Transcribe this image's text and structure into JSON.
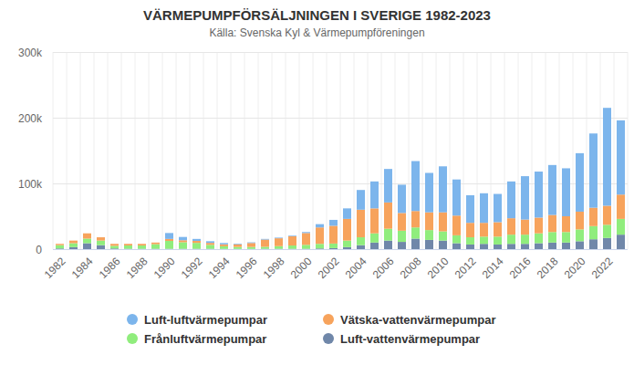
{
  "chart_data": {
    "type": "bar",
    "title": "VÄRMEPUMPFÖRSÄLJNINGEN I SVERIGE 1982-2023",
    "subtitle": "Källa: Svenska Kyl & Värmepumpföreningen",
    "stacked": true,
    "grid": true,
    "legend": "bottom",
    "categories": [
      "1982",
      null,
      "1984",
      null,
      "1986",
      null,
      "1988",
      null,
      "1990",
      null,
      "1992",
      null,
      "1994",
      null,
      "1996",
      null,
      "1998",
      null,
      "2000",
      null,
      "2002",
      null,
      "2004",
      null,
      "2006",
      null,
      "2008",
      null,
      "2010",
      null,
      "2012",
      null,
      "2014",
      null,
      "2016",
      null,
      "2018",
      null,
      "2020",
      null,
      "2022",
      null
    ],
    "ylim": [
      0,
      300000
    ],
    "yticks": [
      {
        "value": 0,
        "label": "0"
      },
      {
        "value": 100000,
        "label": "100k"
      },
      {
        "value": 200000,
        "label": "200k"
      },
      {
        "value": 300000,
        "label": "300k"
      }
    ],
    "series": [
      {
        "name": "Luft-luftvärmepumpar",
        "color": "#7cb5ec",
        "values": [
          0,
          0,
          0,
          0,
          0,
          0,
          0,
          0,
          9000,
          5000,
          3000,
          2500,
          2000,
          1000,
          1000,
          1000,
          1000,
          1000,
          1500,
          5000,
          9000,
          16000,
          30000,
          41000,
          51000,
          43000,
          76000,
          60000,
          70000,
          55000,
          42000,
          45000,
          43000,
          56000,
          66000,
          70000,
          76000,
          73000,
          89000,
          113000,
          149000,
          113000
        ]
      },
      {
        "name": "Vätska-vattenvärmepumpar",
        "color": "#f7a35c",
        "values": [
          2000,
          4000,
          8000,
          5000,
          3000,
          2500,
          2500,
          2500,
          3000,
          3000,
          3000,
          3000,
          3000,
          4000,
          6000,
          11000,
          12000,
          14000,
          18000,
          25000,
          27000,
          33000,
          42000,
          38000,
          40000,
          27000,
          25000,
          27000,
          29000,
          30000,
          22000,
          21000,
          22000,
          25000,
          23000,
          24000,
          26000,
          24000,
          27000,
          28000,
          29000,
          37000
        ]
      },
      {
        "name": "Frånluftvärmepumpar",
        "color": "#90ed7d",
        "values": [
          5000,
          6000,
          7000,
          7000,
          4000,
          5000,
          5000,
          7000,
          12000,
          10000,
          9000,
          6000,
          4000,
          3000,
          3000,
          3000,
          4000,
          5000,
          6000,
          7000,
          7000,
          10000,
          12000,
          14000,
          18000,
          17000,
          17000,
          15000,
          14000,
          12000,
          11000,
          11000,
          12000,
          14000,
          14000,
          15000,
          16000,
          16000,
          18000,
          20000,
          20000,
          24000
        ]
      },
      {
        "name": "Luft-vattenvärmepumpar",
        "color": "#7087a9",
        "values": [
          1000,
          3000,
          9000,
          6000,
          1000,
          500,
          500,
          500,
          500,
          500,
          500,
          500,
          300,
          300,
          300,
          500,
          500,
          500,
          500,
          1000,
          1500,
          3000,
          6000,
          10000,
          13000,
          11000,
          16000,
          14000,
          13000,
          9000,
          7000,
          8000,
          7000,
          8000,
          8000,
          9000,
          10000,
          10000,
          12000,
          15000,
          17000,
          22000
        ]
      }
    ]
  }
}
